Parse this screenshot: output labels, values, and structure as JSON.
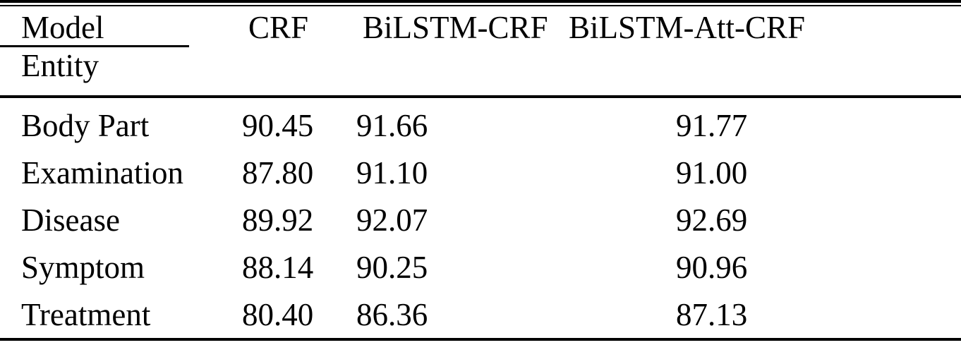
{
  "table": {
    "header": {
      "model_label": "Model",
      "entity_label": "Entity",
      "columns": [
        "CRF",
        "BiLSTM-CRF",
        "BiLSTM-Att-CRF"
      ]
    },
    "rows": [
      {
        "entity": "Body Part",
        "values": [
          "90.45",
          "91.66",
          "91.77"
        ]
      },
      {
        "entity": "Examination",
        "values": [
          "87.80",
          "91.10",
          "91.00"
        ]
      },
      {
        "entity": "Disease",
        "values": [
          "89.92",
          "92.07",
          "92.69"
        ]
      },
      {
        "entity": "Symptom",
        "values": [
          "88.14",
          "90.25",
          "90.96"
        ]
      },
      {
        "entity": "Treatment",
        "values": [
          "80.40",
          "86.36",
          "87.13"
        ]
      }
    ]
  },
  "colors": {
    "text": "#000000",
    "background": "#ffffff",
    "rule": "#000000"
  },
  "chart_data": {
    "type": "table",
    "title": "",
    "row_header_label": "Entity",
    "column_header_label": "Model",
    "columns": [
      "CRF",
      "BiLSTM-CRF",
      "BiLSTM-Att-CRF"
    ],
    "categories": [
      "Body Part",
      "Examination",
      "Disease",
      "Symptom",
      "Treatment"
    ],
    "series": [
      {
        "name": "CRF",
        "values": [
          90.45,
          87.8,
          89.92,
          88.14,
          80.4
        ]
      },
      {
        "name": "BiLSTM-CRF",
        "values": [
          91.66,
          91.1,
          92.07,
          90.25,
          86.36
        ]
      },
      {
        "name": "BiLSTM-Att-CRF",
        "values": [
          91.77,
          91.0,
          92.69,
          90.96,
          87.13
        ]
      }
    ]
  }
}
